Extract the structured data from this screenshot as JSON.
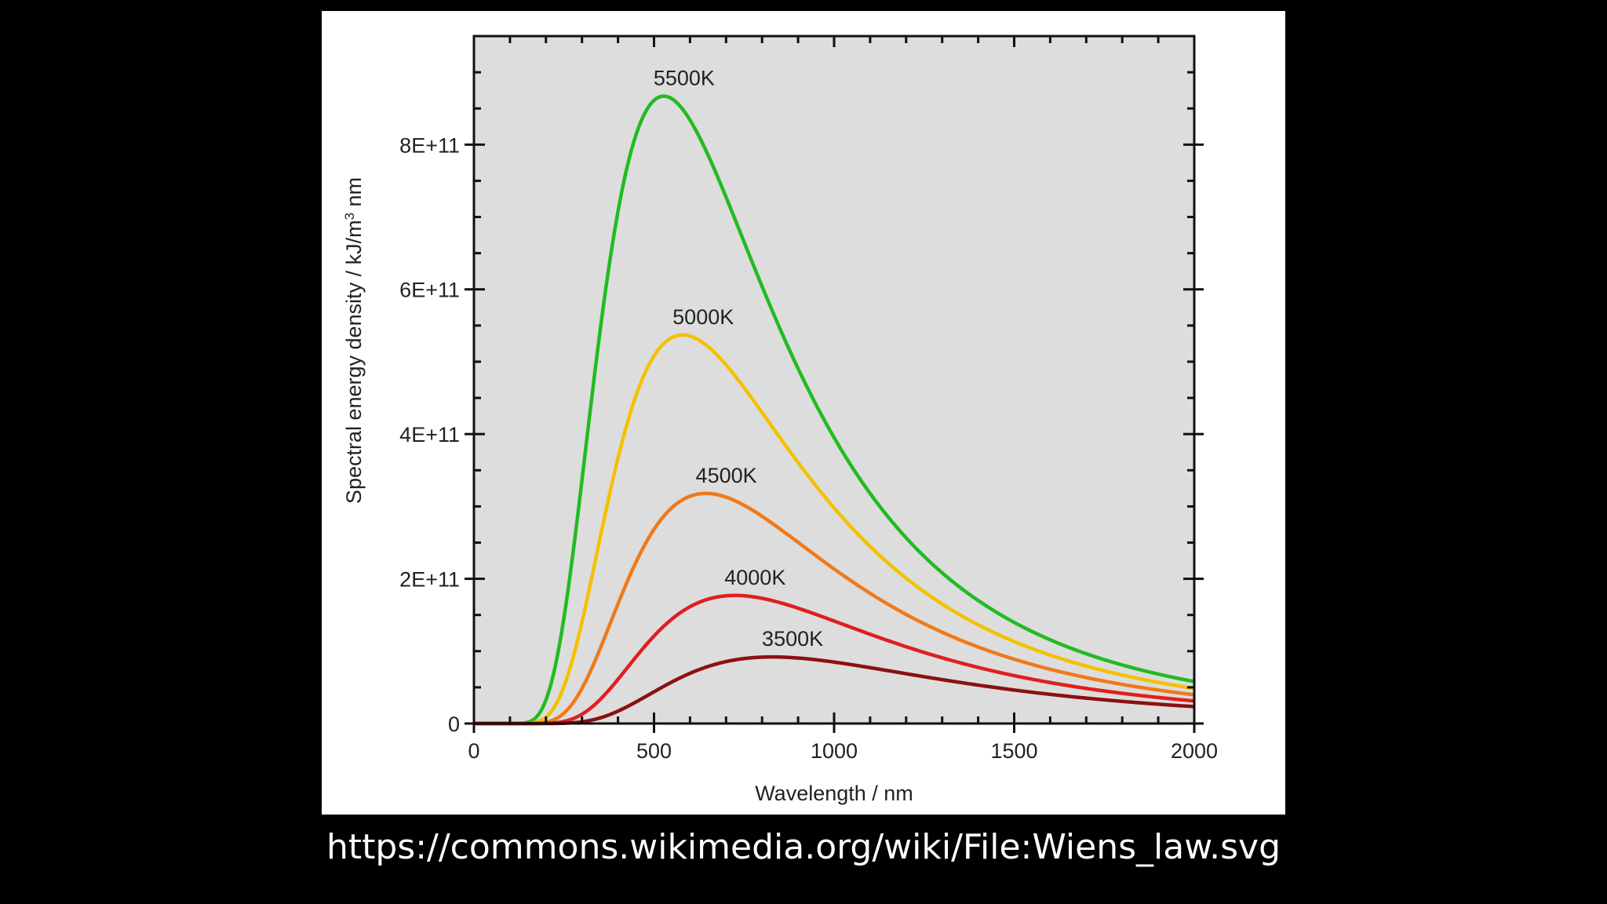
{
  "caption": "https://commons.wikimedia.org/wiki/File:Wiens_law.svg",
  "chart_data": {
    "type": "line",
    "title": "",
    "xlabel": "Wavelength / nm",
    "ylabel": {
      "prefix": "Spectral energy density / kJ/m",
      "sup": "3",
      "suffix": " nm"
    },
    "xlim": [
      0,
      2000
    ],
    "ylim": [
      0,
      950000000000.0
    ],
    "x_ticks": [
      0,
      500,
      1000,
      1500,
      2000
    ],
    "x_tick_labels": [
      "0",
      "500",
      "1000",
      "1500",
      "2000"
    ],
    "y_ticks": [
      0,
      200000000000.0,
      400000000000.0,
      600000000000.0,
      800000000000.0
    ],
    "y_tick_labels": [
      "0",
      "2E+11",
      "4E+11",
      "6E+11",
      "8E+11"
    ],
    "x_minor_step": 100,
    "y_minor_step": 50000000000.0,
    "grid": false,
    "plot_background": "#dddddd",
    "series": [
      {
        "name": "5500K",
        "temperature": 5500,
        "color": "#22bb22",
        "peak_x": 527,
        "peak_y": 867000000000.0
      },
      {
        "name": "5000K",
        "temperature": 5000,
        "color": "#f2c200",
        "peak_x": 580,
        "peak_y": 537000000000.0
      },
      {
        "name": "4500K",
        "temperature": 4500,
        "color": "#ef7a1a",
        "peak_x": 644,
        "peak_y": 318000000000.0
      },
      {
        "name": "4000K",
        "temperature": 4000,
        "color": "#e01f1f",
        "peak_x": 724,
        "peak_y": 177000000000.0
      },
      {
        "name": "3500K",
        "temperature": 3500,
        "color": "#8c1010",
        "peak_x": 828,
        "peak_y": 92000000000.0
      }
    ]
  }
}
